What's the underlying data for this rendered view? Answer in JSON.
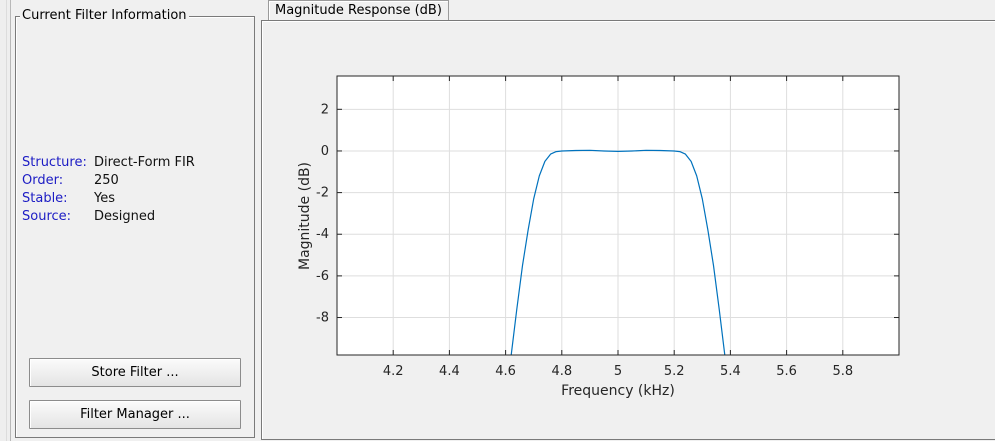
{
  "info_panel": {
    "title": "Current Filter Information",
    "rows": [
      {
        "key": "Structure:",
        "value": "Direct-Form FIR"
      },
      {
        "key": "Order:",
        "value": "250"
      },
      {
        "key": "Stable:",
        "value": "Yes"
      },
      {
        "key": "Source:",
        "value": "Designed"
      }
    ],
    "store_button": "Store Filter ...",
    "manager_button": "Filter Manager ..."
  },
  "plot_panel": {
    "tab_label": "Magnitude Response (dB)"
  },
  "chart_data": {
    "type": "line",
    "title": "",
    "xlabel": "Frequency (kHz)",
    "ylabel": "Magnitude (dB)",
    "xlim": [
      4.0,
      6.0
    ],
    "ylim": [
      -9.8,
      3.6
    ],
    "xticks": [
      4.2,
      4.4,
      4.6,
      4.8,
      5.0,
      5.2,
      5.4,
      5.6,
      5.8
    ],
    "xtick_labels": [
      "4.2",
      "4.4",
      "4.6",
      "4.8",
      "5",
      "5.2",
      "5.4",
      "5.6",
      "5.8"
    ],
    "yticks": [
      2,
      0,
      -2,
      -4,
      -6,
      -8
    ],
    "ytick_labels": [
      "2",
      "0",
      "-2",
      "-4",
      "-6",
      "-8"
    ],
    "grid": true,
    "series": [
      {
        "color": "#0072bd",
        "x": [
          4.62,
          4.64,
          4.66,
          4.68,
          4.7,
          4.72,
          4.74,
          4.76,
          4.78,
          4.8,
          4.85,
          4.9,
          4.95,
          5.0,
          5.05,
          5.1,
          5.15,
          5.2,
          5.22,
          5.24,
          5.26,
          5.28,
          5.3,
          5.32,
          5.34,
          5.36,
          5.38
        ],
        "y": [
          -9.8,
          -7.6,
          -5.5,
          -3.8,
          -2.3,
          -1.2,
          -0.5,
          -0.15,
          -0.03,
          0.0,
          0.02,
          0.03,
          0.0,
          -0.02,
          0.0,
          0.03,
          0.02,
          0.0,
          -0.03,
          -0.15,
          -0.5,
          -1.2,
          -2.3,
          -3.8,
          -5.5,
          -7.6,
          -9.8
        ]
      }
    ]
  }
}
